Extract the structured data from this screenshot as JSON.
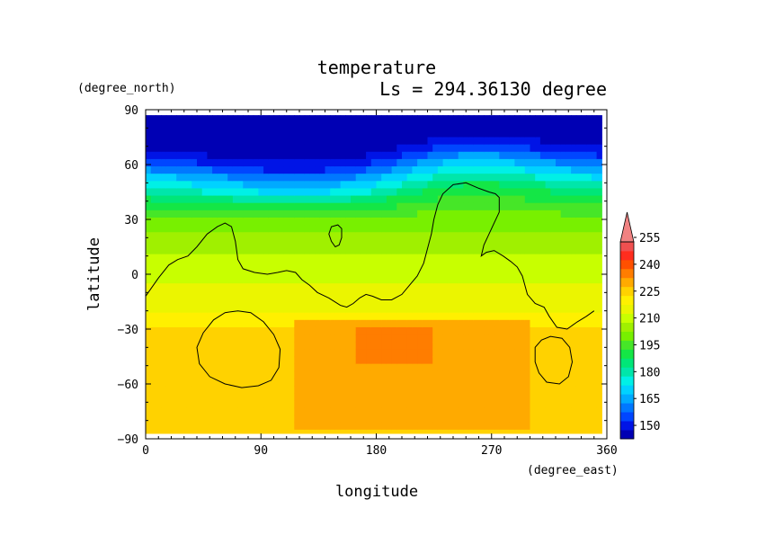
{
  "chart_data": {
    "type": "heatmap",
    "title": "temperature",
    "subtitle": "Ls = 294.36130 degree",
    "xlabel": "longitude",
    "ylabel": "latitude",
    "x_units": "(degree_east)",
    "y_units": "(degree_north)",
    "xlim": [
      0,
      360
    ],
    "ylim": [
      -90,
      90
    ],
    "data_extent": {
      "x": [
        0,
        356
      ],
      "y": [
        -87,
        87
      ]
    },
    "x_ticks": [
      0,
      90,
      180,
      270,
      360
    ],
    "y_ticks": [
      90,
      60,
      30,
      0,
      -30,
      -60,
      -90
    ],
    "x_tick_labels": [
      "0",
      "90",
      "180",
      "270",
      "360"
    ],
    "y_tick_labels": [
      "90",
      "60",
      "30",
      "0",
      "−30",
      "−60",
      "−90"
    ],
    "colorbar": {
      "levels": [
        145,
        150,
        155,
        160,
        165,
        170,
        175,
        180,
        185,
        190,
        195,
        200,
        205,
        210,
        215,
        220,
        225,
        230,
        235,
        240,
        245,
        250,
        255,
        260
      ],
      "colors": [
        "#0000b4",
        "#0014e6",
        "#0046ff",
        "#0078ff",
        "#00aaff",
        "#00d2ff",
        "#00f0e6",
        "#00e6aa",
        "#00e678",
        "#14e646",
        "#46e628",
        "#78f000",
        "#a0f000",
        "#c8ff00",
        "#ebf500",
        "#fff000",
        "#ffd200",
        "#ffaa00",
        "#ff7d00",
        "#ff5000",
        "#ff2d1e",
        "#f05050",
        "#f08282"
      ],
      "labeled_levels": [
        150,
        165,
        180,
        195,
        210,
        225,
        240,
        255
      ],
      "labels": [
        "150",
        "165",
        "180",
        "195",
        "210",
        "225",
        "240",
        "255"
      ],
      "extend": "max"
    },
    "field": {
      "lat_points": [
        90,
        85,
        80,
        72,
        66,
        60,
        54,
        48,
        42,
        36,
        30,
        20,
        10,
        0,
        -10,
        -20,
        -30,
        -90
      ],
      "lat_values": [
        146,
        146,
        147,
        148,
        152,
        162,
        172,
        181,
        190,
        196,
        202,
        207,
        210,
        213,
        216,
        219,
        226,
        227
      ],
      "wave_amplitude_deg": 8,
      "wave_peak_lon": 255,
      "wave_trough_lon": 120,
      "warm_region": {
        "lon": [
          115,
          300
        ],
        "lat": [
          -85,
          -25
        ],
        "value": 231
      },
      "warmer_core": {
        "lon": [
          165,
          225
        ],
        "lat": [
          -47,
          -31
        ],
        "value": 236
      }
    },
    "contours": [
      {
        "name": "main",
        "points": [
          [
            0,
            -12
          ],
          [
            10,
            -2
          ],
          [
            18,
            5
          ],
          [
            25,
            8
          ],
          [
            33,
            10
          ],
          [
            40,
            15
          ],
          [
            48,
            22
          ],
          [
            56,
            26
          ],
          [
            62,
            28
          ],
          [
            67,
            26
          ],
          [
            70,
            18
          ],
          [
            72,
            8
          ],
          [
            76,
            3
          ],
          [
            85,
            1
          ],
          [
            95,
            0
          ],
          [
            103,
            1
          ],
          [
            110,
            2
          ],
          [
            117,
            1
          ],
          [
            122,
            -3
          ],
          [
            128,
            -6
          ],
          [
            134,
            -10
          ],
          [
            143,
            -13
          ],
          [
            152,
            -17
          ],
          [
            157,
            -18
          ],
          [
            162,
            -16
          ],
          [
            167,
            -13
          ],
          [
            172,
            -11
          ],
          [
            177,
            -12
          ],
          [
            184,
            -14
          ],
          [
            192,
            -14
          ],
          [
            200,
            -11
          ],
          [
            206,
            -6
          ],
          [
            212,
            -1
          ],
          [
            217,
            6
          ],
          [
            220,
            14
          ],
          [
            223,
            22
          ],
          [
            225,
            30
          ],
          [
            228,
            38
          ],
          [
            232,
            44
          ],
          [
            240,
            49
          ],
          [
            250,
            50
          ],
          [
            260,
            47
          ],
          [
            268,
            45
          ],
          [
            273,
            44
          ],
          [
            276,
            42
          ],
          [
            276,
            34
          ],
          [
            272,
            28
          ],
          [
            268,
            22
          ],
          [
            264,
            16
          ],
          [
            262,
            10
          ],
          [
            266,
            12
          ],
          [
            272,
            13
          ],
          [
            279,
            10
          ],
          [
            285,
            7
          ],
          [
            290,
            4
          ],
          [
            294,
            -1
          ],
          [
            298,
            -11
          ],
          [
            304,
            -16
          ],
          [
            311,
            -18
          ],
          [
            315,
            -23
          ],
          [
            321,
            -29
          ],
          [
            329,
            -30
          ],
          [
            337,
            -26
          ],
          [
            344,
            -23
          ],
          [
            350,
            -20
          ]
        ]
      },
      {
        "name": "island-north",
        "closed": true,
        "points": [
          [
            143,
            22
          ],
          [
            145,
            26
          ],
          [
            150,
            27
          ],
          [
            153,
            25
          ],
          [
            153,
            20
          ],
          [
            151,
            16
          ],
          [
            148,
            15
          ],
          [
            145,
            18
          ]
        ]
      },
      {
        "name": "loop-west",
        "closed": true,
        "points": [
          [
            40,
            -40
          ],
          [
            45,
            -32
          ],
          [
            53,
            -25
          ],
          [
            62,
            -21
          ],
          [
            72,
            -20
          ],
          [
            82,
            -21
          ],
          [
            92,
            -26
          ],
          [
            100,
            -33
          ],
          [
            105,
            -41
          ],
          [
            104,
            -51
          ],
          [
            98,
            -58
          ],
          [
            88,
            -61
          ],
          [
            75,
            -62
          ],
          [
            62,
            -60
          ],
          [
            50,
            -56
          ],
          [
            42,
            -49
          ]
        ]
      },
      {
        "name": "loop-east",
        "closed": true,
        "points": [
          [
            304,
            -48
          ],
          [
            304,
            -40
          ],
          [
            309,
            -36
          ],
          [
            316,
            -34
          ],
          [
            325,
            -35
          ],
          [
            331,
            -40
          ],
          [
            333,
            -48
          ],
          [
            330,
            -56
          ],
          [
            323,
            -60
          ],
          [
            313,
            -59
          ],
          [
            307,
            -54
          ]
        ]
      }
    ]
  }
}
